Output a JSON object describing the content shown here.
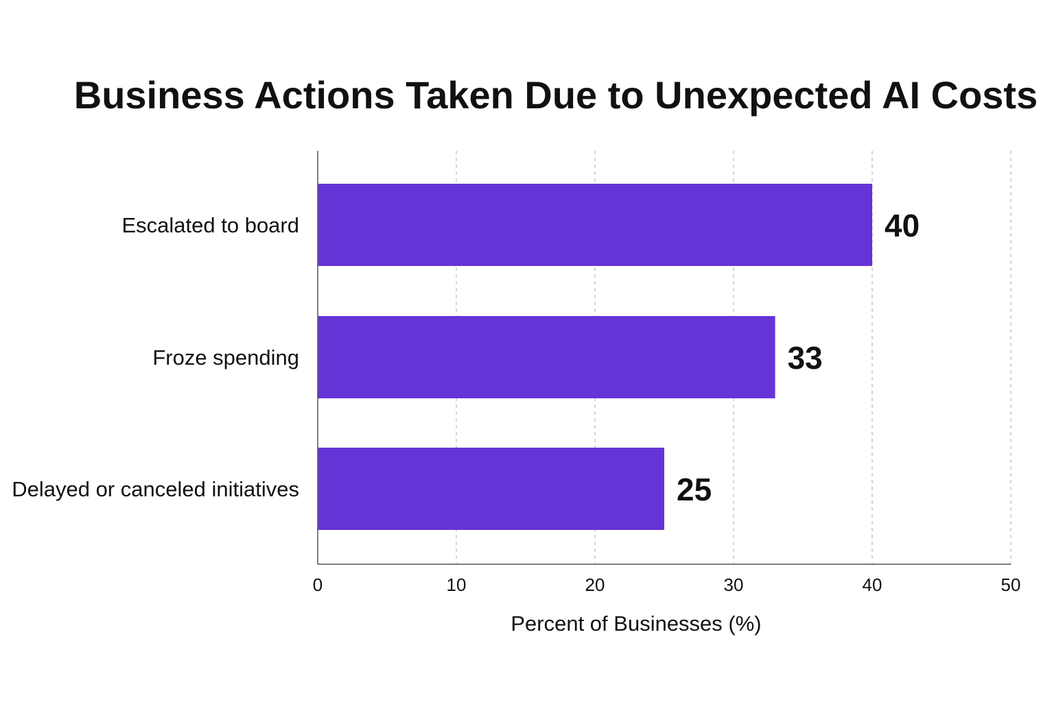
{
  "chart_data": {
    "type": "bar",
    "orientation": "horizontal",
    "title": "Business Actions Taken Due to Unexpected AI Costs",
    "xlabel": "Percent of Businesses (%)",
    "ylabel": "",
    "categories": [
      "Escalated to board",
      "Froze spending",
      "Delayed or canceled initiatives"
    ],
    "values": [
      40,
      33,
      25
    ],
    "xlim": [
      0,
      50
    ],
    "ticks": [
      "0",
      "10",
      "20",
      "30",
      "40",
      "50"
    ],
    "grid": "vertical dashed",
    "legend": "none",
    "bar_color": "#6633d6",
    "data_labels": [
      "40",
      "33",
      "25"
    ]
  }
}
